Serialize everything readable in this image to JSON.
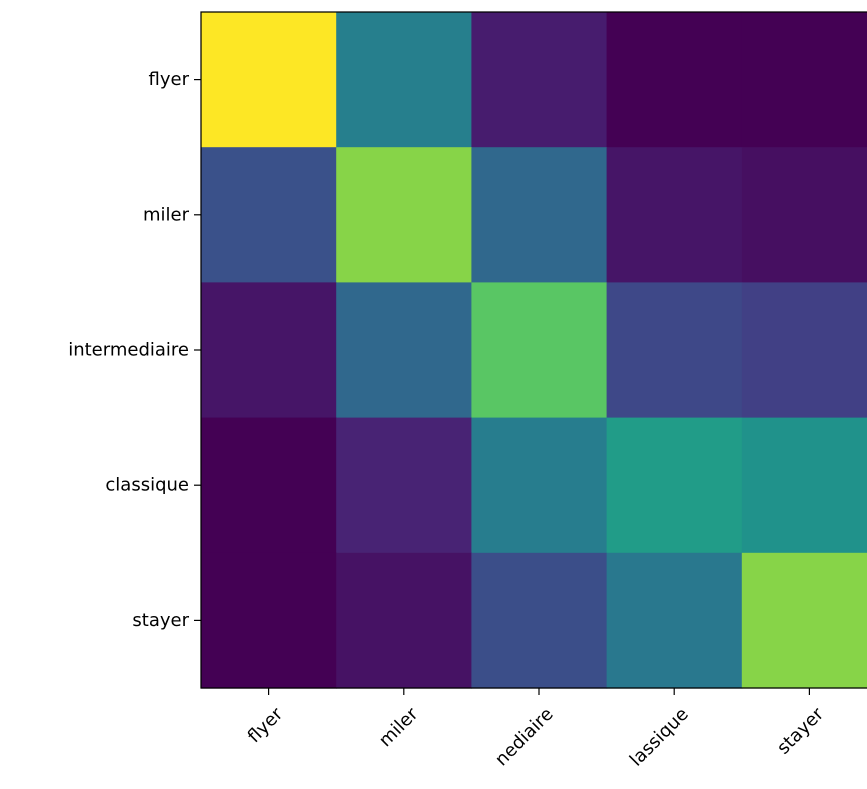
{
  "chart_data": {
    "type": "heatmap",
    "title": "",
    "xlabel": "",
    "ylabel": "",
    "colormap": "viridis",
    "x_categories": [
      "flyer",
      "miler",
      "intermediaire",
      "classique",
      "stayer"
    ],
    "y_categories": [
      "flyer",
      "miler",
      "intermediaire",
      "classique",
      "stayer"
    ],
    "x_tick_labels_visible": [
      "flyer",
      "miler",
      "nediaire",
      "lassique",
      "stayer"
    ],
    "values": [
      [
        1.0,
        0.43,
        0.08,
        0.0,
        0.0
      ],
      [
        0.25,
        0.82,
        0.34,
        0.06,
        0.04
      ],
      [
        0.06,
        0.34,
        0.74,
        0.22,
        0.19
      ],
      [
        0.0,
        0.1,
        0.42,
        0.55,
        0.51
      ],
      [
        0.0,
        0.05,
        0.24,
        0.4,
        0.82
      ]
    ],
    "x_tick_rotation_deg": 45
  }
}
